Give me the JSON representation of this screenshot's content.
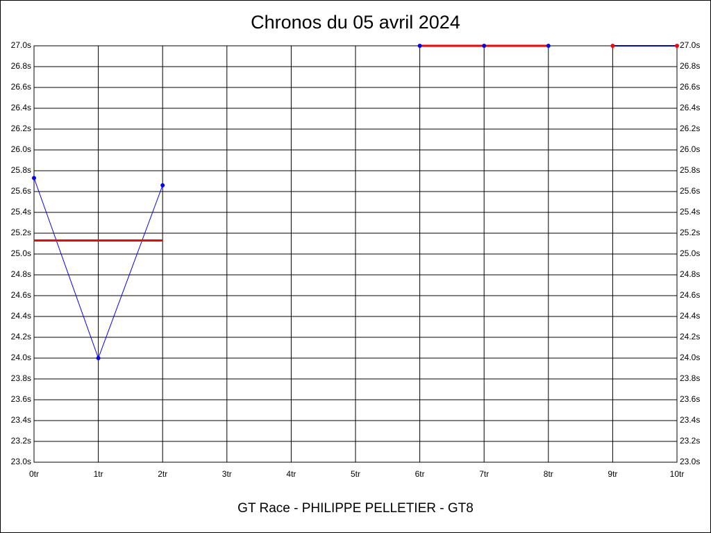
{
  "chart_data": {
    "type": "line",
    "title": "Chronos du 05 avril 2024",
    "footer": "GT Race - PHILIPPE PELLETIER - GT8",
    "x": [
      0,
      1,
      2,
      3,
      4,
      5,
      6,
      7,
      8,
      9,
      10
    ],
    "xlim": [
      0,
      10
    ],
    "xticks": [
      {
        "value": 0,
        "label": "0tr"
      },
      {
        "value": 1,
        "label": "1tr"
      },
      {
        "value": 2,
        "label": "2tr"
      },
      {
        "value": 3,
        "label": "3tr"
      },
      {
        "value": 4,
        "label": "4tr"
      },
      {
        "value": 5,
        "label": "5tr"
      },
      {
        "value": 6,
        "label": "6tr"
      },
      {
        "value": 7,
        "label": "7tr"
      },
      {
        "value": 8,
        "label": "8tr"
      },
      {
        "value": 9,
        "label": "9tr"
      },
      {
        "value": 10,
        "label": "10tr"
      }
    ],
    "ylim": [
      23,
      27
    ],
    "yticks": [
      {
        "value": 23,
        "label": "23.0s"
      },
      {
        "value": 23.2,
        "label": "23.2s"
      },
      {
        "value": 23.4,
        "label": "23.4s"
      },
      {
        "value": 23.6,
        "label": "23.6s"
      },
      {
        "value": 23.8,
        "label": "23.8s"
      },
      {
        "value": 24,
        "label": "24.0s"
      },
      {
        "value": 24.2,
        "label": "24.2s"
      },
      {
        "value": 24.4,
        "label": "24.4s"
      },
      {
        "value": 24.6,
        "label": "24.6s"
      },
      {
        "value": 24.8,
        "label": "24.8s"
      },
      {
        "value": 25,
        "label": "25.0s"
      },
      {
        "value": 25.2,
        "label": "25.2s"
      },
      {
        "value": 25.4,
        "label": "25.4s"
      },
      {
        "value": 25.6,
        "label": "25.6s"
      },
      {
        "value": 25.8,
        "label": "25.8s"
      },
      {
        "value": 26,
        "label": "26.0s"
      },
      {
        "value": 26.2,
        "label": "26.2s"
      },
      {
        "value": 26.4,
        "label": "26.4s"
      },
      {
        "value": 26.6,
        "label": "26.6s"
      },
      {
        "value": 26.8,
        "label": "26.8s"
      },
      {
        "value": 27,
        "label": "27.0s"
      }
    ],
    "grid": true,
    "right_axis": true,
    "series": [
      {
        "color": "#0000ff",
        "marker_color": "#0000ff",
        "line_width": 1,
        "values": [
          25.73,
          24.0,
          25.66,
          null,
          null,
          null,
          27.0,
          27.0,
          27.0,
          null,
          null
        ]
      },
      {
        "color": "#ff0000",
        "marker_color": null,
        "line_width": 3,
        "values": [
          25.13,
          25.13,
          25.13,
          null,
          null,
          null,
          27.0,
          27.0,
          27.0,
          null,
          null
        ]
      },
      {
        "color": "#0000ff",
        "marker_color": "#ff0000",
        "line_width": 2,
        "values": [
          null,
          null,
          null,
          null,
          null,
          null,
          null,
          null,
          null,
          27.0,
          27.0
        ]
      }
    ]
  }
}
